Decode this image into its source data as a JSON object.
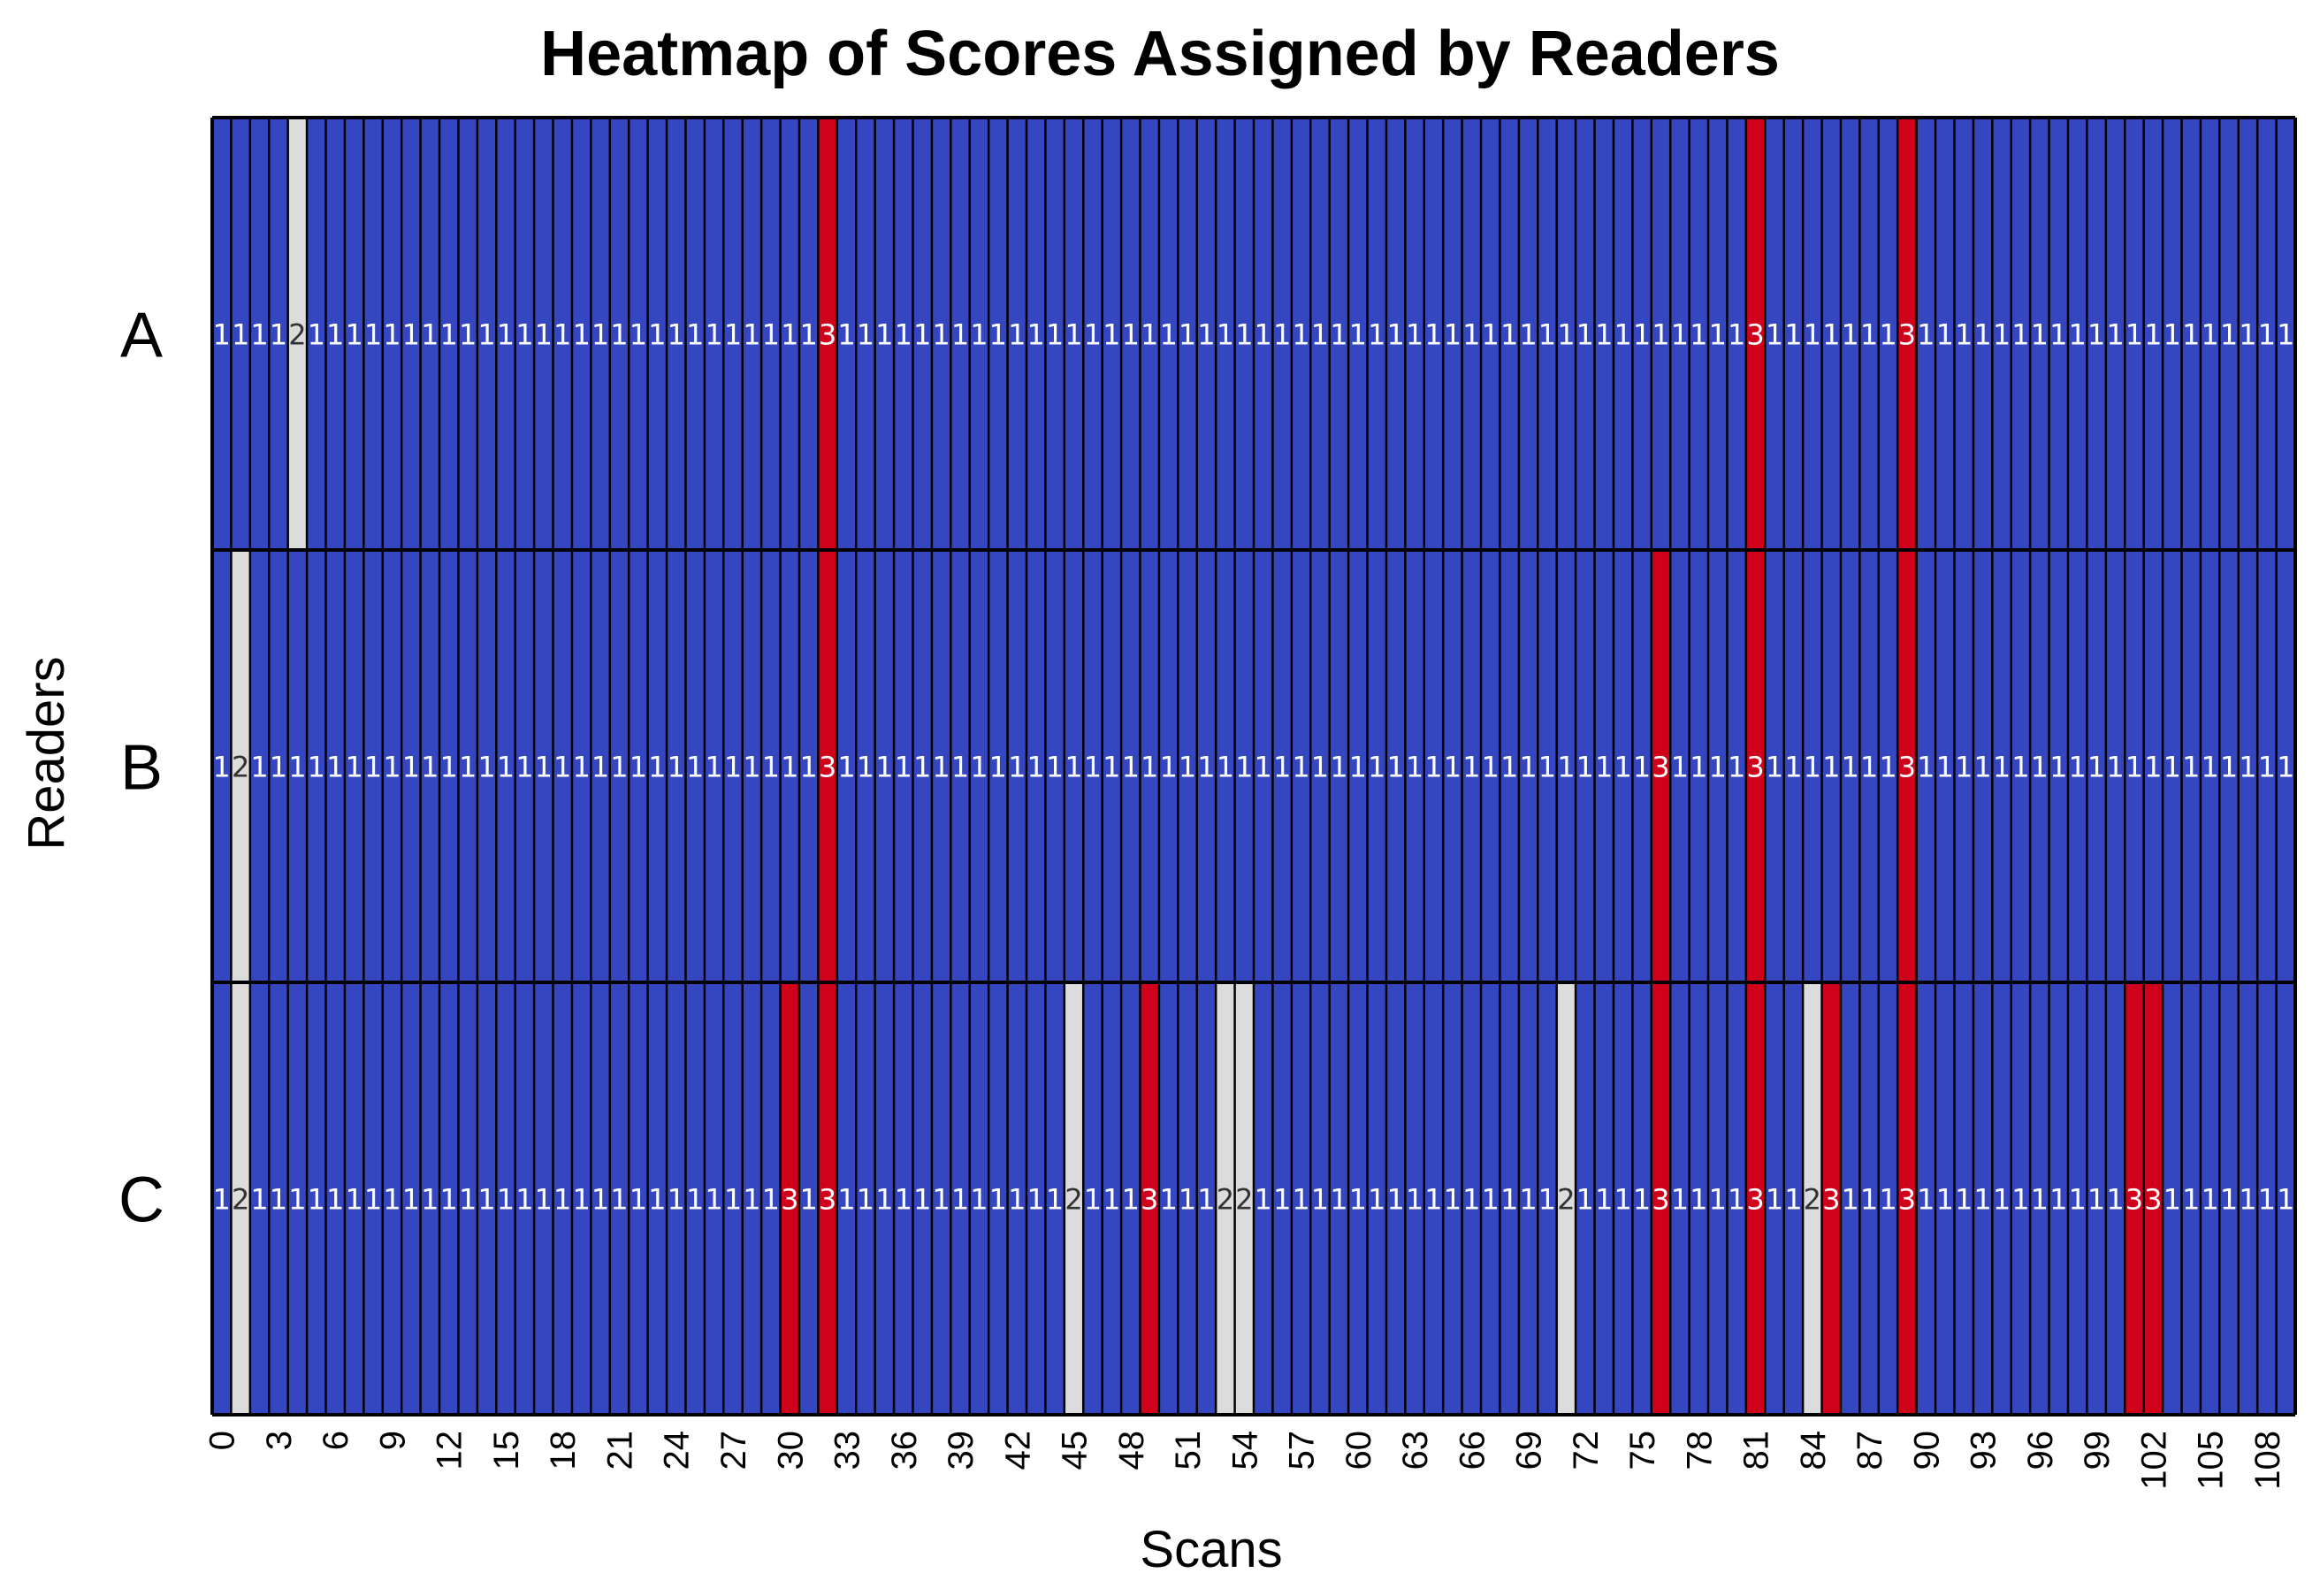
{
  "chart_data": {
    "type": "heatmap",
    "title": "Heatmap of Scores Assigned by Readers",
    "xlabel": "Scans",
    "ylabel": "Readers",
    "rows": [
      "A",
      "B",
      "C"
    ],
    "x_ticks": [
      0,
      3,
      6,
      9,
      12,
      15,
      18,
      21,
      24,
      27,
      30,
      33,
      36,
      39,
      42,
      45,
      48,
      51,
      54,
      57,
      60,
      63,
      66,
      69,
      72,
      75,
      78,
      81,
      84,
      87,
      90,
      93,
      96,
      99,
      102,
      105,
      108
    ],
    "n_scans": 110,
    "default_score": 1,
    "exceptions": {
      "A": {
        "4": 2,
        "32": 3,
        "81": 3,
        "89": 3
      },
      "B": {
        "1": 2,
        "32": 3,
        "76": 3,
        "81": 3,
        "89": 3
      },
      "C": {
        "1": 2,
        "30": 3,
        "32": 3,
        "45": 2,
        "49": 3,
        "53": 2,
        "54": 2,
        "71": 2,
        "76": 3,
        "81": 3,
        "84": 2,
        "85": 3,
        "89": 3,
        "101": 3,
        "102": 3
      }
    },
    "colors": {
      "1": "#3446c0",
      "2": "#dcdcdc",
      "3": "#d0021b"
    },
    "text_colors": {
      "1": "#ffffff",
      "2": "#333333",
      "3": "#ffffff"
    },
    "grid": true
  }
}
